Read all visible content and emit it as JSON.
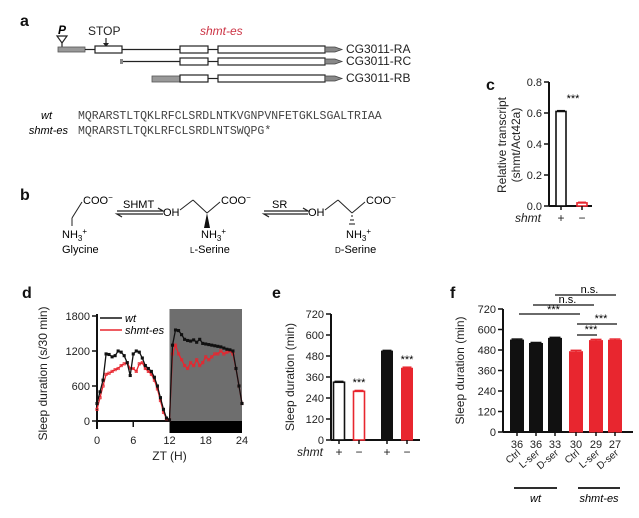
{
  "colors": {
    "wt": "#111111",
    "mutant": "#e8262f",
    "night": "#6e6e6e",
    "label_red": "#cc3344"
  },
  "panel_a": {
    "letter": "a",
    "promoter_label": "P",
    "stop_label": "STOP",
    "allele_label": "shmt-es",
    "transcripts": [
      "CG3011-RA",
      "CG3011-RC",
      "CG3011-RB"
    ],
    "seq_labels": [
      "wt",
      "shmt-es"
    ],
    "sequences": [
      "MQRARSTLTQKLRFCLSRDLNTKVGNPVNFETGKLSGALTRIAA",
      "MQRARSTLTQKLRFCLSRDLNTSWQPG*"
    ]
  },
  "panel_b": {
    "letter": "b",
    "enzymes": [
      "SHMT",
      "SR"
    ],
    "groups": {
      "coo": "COO",
      "charge_minus": "−",
      "oh": "OH",
      "nh3": "NH",
      "sub3": "3",
      "charge_plus": "+"
    },
    "compounds": [
      "Glycine",
      "L-Serine",
      "D-Serine"
    ],
    "compound_prefix": [
      "",
      "L",
      "D"
    ],
    "compound_suffix": [
      "",
      "-Serine",
      "-Serine"
    ]
  },
  "chart_data": [
    {
      "panel": "c",
      "type": "bar",
      "ylabel_lines": [
        "Relative transcript",
        "(shmt/Act42a)"
      ],
      "categories": [
        "+",
        "−"
      ],
      "group_label": "shmt",
      "values": [
        0.61,
        0.02
      ],
      "errors": [
        0.005,
        0.004
      ],
      "ylim": [
        0,
        0.8
      ],
      "yticks": [
        "0.0",
        "0.2",
        "0.4",
        "0.6",
        "0.8"
      ],
      "ytick_values": [
        0,
        0.2,
        0.4,
        0.6,
        0.8
      ],
      "significance": [
        "***"
      ],
      "fill": [
        "open-black",
        "open-red"
      ]
    },
    {
      "panel": "d",
      "type": "line",
      "ylabel": "Sleep duration (s/30 min)",
      "xlabel": "ZT (H)",
      "xlim": [
        0,
        24
      ],
      "ylim": [
        0,
        1800
      ],
      "xticks": [
        "0",
        "6",
        "12",
        "18",
        "24"
      ],
      "xtick_values": [
        0,
        6,
        12,
        18,
        24
      ],
      "yticks": [
        "0",
        "600",
        "1200",
        "1800"
      ],
      "ytick_values": [
        0,
        600,
        1200,
        1800
      ],
      "legend": [
        "wt",
        "shmt-es"
      ],
      "legend_position": "top-left",
      "shaded_region": [
        12,
        24
      ],
      "x": [
        0,
        0.5,
        1,
        1.5,
        2,
        2.5,
        3,
        3.5,
        4,
        4.5,
        5,
        5.5,
        6,
        6.5,
        7,
        7.5,
        8,
        8.5,
        9,
        9.5,
        10,
        10.5,
        11,
        11.5,
        12,
        12.5,
        13,
        13.5,
        14,
        14.5,
        15,
        15.5,
        16,
        16.5,
        17,
        17.5,
        18,
        18.5,
        19,
        19.5,
        20,
        20.5,
        21,
        21.5,
        22,
        22.5,
        23,
        23.5,
        24
      ],
      "series": [
        {
          "name": "wt",
          "values": [
            300,
            500,
            700,
            1150,
            1140,
            1100,
            1120,
            1200,
            1180,
            1120,
            1000,
            780,
            1150,
            1200,
            1180,
            1080,
            950,
            900,
            850,
            750,
            600,
            400,
            200,
            50,
            20,
            1300,
            1560,
            1550,
            1480,
            1400,
            1380,
            1370,
            1390,
            1350,
            1400,
            1330,
            1320,
            1310,
            1300,
            1290,
            1280,
            1270,
            1250,
            1230,
            1220,
            1200,
            900,
            600,
            300
          ]
        },
        {
          "name": "shmt-es",
          "values": [
            200,
            400,
            600,
            800,
            820,
            850,
            880,
            900,
            950,
            980,
            1000,
            900,
            900,
            850,
            980,
            1000,
            900,
            850,
            800,
            700,
            550,
            350,
            150,
            40,
            20,
            1150,
            1300,
            1150,
            1050,
            950,
            900,
            1000,
            950,
            1050,
            950,
            1000,
            1100,
            1050,
            1100,
            1150,
            1150,
            1200,
            1150,
            1180,
            1200,
            1150,
            900,
            600,
            300
          ]
        }
      ]
    },
    {
      "panel": "e",
      "type": "bar",
      "ylabel": "Sleep duration (min)",
      "group_label": "shmt",
      "categories": [
        "+",
        "−",
        "+",
        "−"
      ],
      "values": [
        330,
        278,
        508,
        410
      ],
      "errors": [
        5,
        5,
        4,
        6
      ],
      "ylim": [
        0,
        720
      ],
      "yticks": [
        "0",
        "120",
        "240",
        "360",
        "480",
        "600",
        "720"
      ],
      "ytick_values": [
        0,
        120,
        240,
        360,
        480,
        600,
        720
      ],
      "significance": [
        "***",
        "***"
      ],
      "fill": [
        "open-black",
        "open-red",
        "solid-black",
        "solid-red"
      ]
    },
    {
      "panel": "f",
      "type": "bar",
      "ylabel": "Sleep duration (min)",
      "categories": [
        "Ctrl",
        "L-ser",
        "D-ser",
        "Ctrl",
        "L-ser",
        "D-ser"
      ],
      "n_labels": [
        "36",
        "36",
        "33",
        "30",
        "29",
        "27"
      ],
      "groups": [
        "wt",
        "shmt-es"
      ],
      "values": [
        538,
        518,
        548,
        470,
        535,
        537
      ],
      "errors": [
        6,
        6,
        6,
        8,
        7,
        7
      ],
      "ylim": [
        0,
        720
      ],
      "yticks": [
        "0",
        "120",
        "240",
        "360",
        "480",
        "600",
        "720"
      ],
      "ytick_values": [
        0,
        120,
        240,
        360,
        480,
        600,
        720
      ],
      "comparisons": [
        {
          "label": "***",
          "from": 0,
          "to": 3
        },
        {
          "label": "n.s.",
          "from": 1,
          "to": 4
        },
        {
          "label": "n.s.",
          "from": 2,
          "to": 5
        },
        {
          "label": "***",
          "from": 3,
          "to": 4
        },
        {
          "label": "***",
          "from": 3,
          "to": 5
        }
      ]
    }
  ]
}
